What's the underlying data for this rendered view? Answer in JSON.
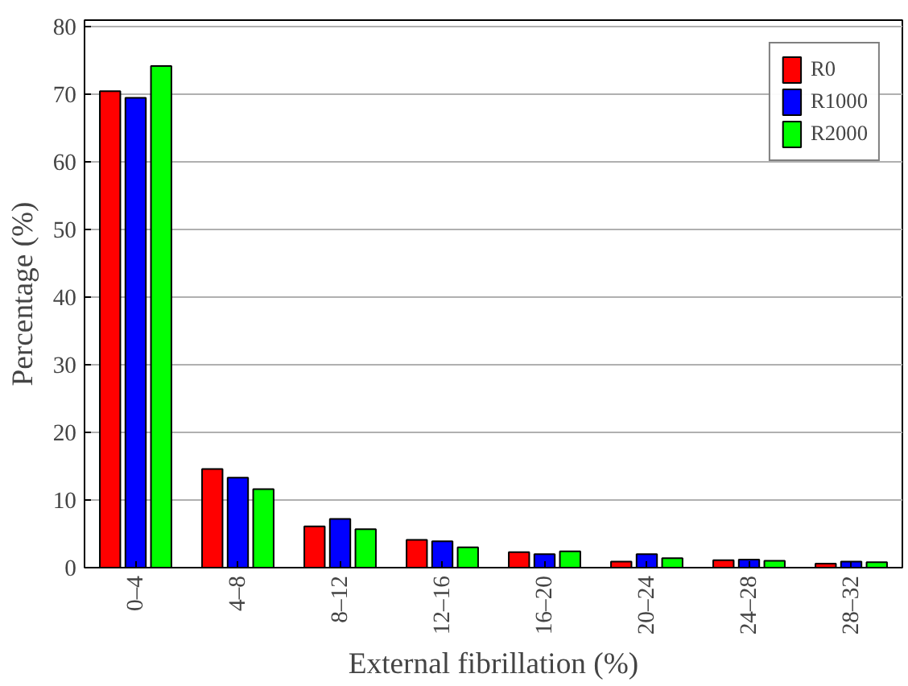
{
  "chart_data": {
    "type": "bar",
    "xlabel": "External fibrillation (%)",
    "ylabel": "Percentage (%)",
    "categories": [
      "0–4",
      "4–8",
      "8–12",
      "12–16",
      "16–20",
      "20–24",
      "24–28",
      "28–32"
    ],
    "series": [
      {
        "name": "R0",
        "color": "#ff0000",
        "values": [
          70.5,
          14.6,
          6.1,
          4.1,
          2.3,
          0.9,
          1.1,
          0.6
        ]
      },
      {
        "name": "R1000",
        "color": "#0000ff",
        "values": [
          69.5,
          13.3,
          7.2,
          3.9,
          2.0,
          2.0,
          1.2,
          0.9
        ]
      },
      {
        "name": "R2000",
        "color": "#00ff00",
        "values": [
          74.2,
          11.6,
          5.7,
          3.0,
          2.4,
          1.4,
          1.0,
          0.8
        ]
      }
    ],
    "ylim": [
      0,
      81
    ],
    "yticks": [
      0,
      10,
      20,
      30,
      40,
      50,
      60,
      70,
      80
    ],
    "grid": "y",
    "legend": "top right"
  }
}
